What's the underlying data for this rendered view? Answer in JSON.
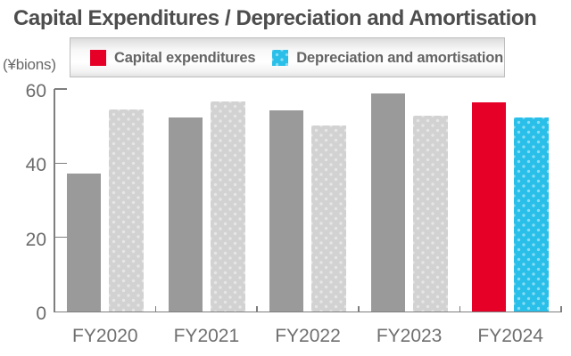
{
  "title": "Capital Expenditures / Depreciation and Amortisation",
  "y_axis_unit": "(¥bions)",
  "legend": {
    "items": [
      {
        "label": "Capital expenditures",
        "color": "#e60027",
        "pattern": "solid"
      },
      {
        "label": "Depreciation and amortisation",
        "color": "#29bfe9",
        "pattern": "dots"
      }
    ]
  },
  "colors": {
    "bar_gray_dark": "#9a9a9a",
    "bar_gray_light": "#d2d2d2",
    "highlight_red": "#e60027",
    "highlight_cyan": "#29bfe9",
    "title_text": "#4d4d4d",
    "axis_text": "#6b6b6b",
    "axis_line": "#7e7e7e"
  },
  "chart_data": {
    "type": "bar",
    "title": "Capital Expenditures / Depreciation and Amortisation",
    "ylabel": "(¥bions)",
    "xlabel": "",
    "categories": [
      "FY2020",
      "FY2021",
      "FY2022",
      "FY2023",
      "FY2024"
    ],
    "series": [
      {
        "name": "Capital expenditures",
        "values": [
          37.3,
          52.3,
          54.2,
          58.7,
          56.5
        ],
        "bar_colors": [
          "#9a9a9a",
          "#9a9a9a",
          "#9a9a9a",
          "#9a9a9a",
          "#e60027"
        ],
        "pattern": "solid"
      },
      {
        "name": "Depreciation and amortisation",
        "values": [
          54.5,
          56.7,
          50.1,
          52.8,
          52.3
        ],
        "bar_colors": [
          "#d2d2d2",
          "#d2d2d2",
          "#d2d2d2",
          "#d2d2d2",
          "#29bfe9"
        ],
        "pattern": "dots"
      }
    ],
    "ylim": [
      0,
      60
    ],
    "yticks": [
      0,
      20,
      40,
      60
    ],
    "grid": false,
    "legend_position": "top"
  }
}
